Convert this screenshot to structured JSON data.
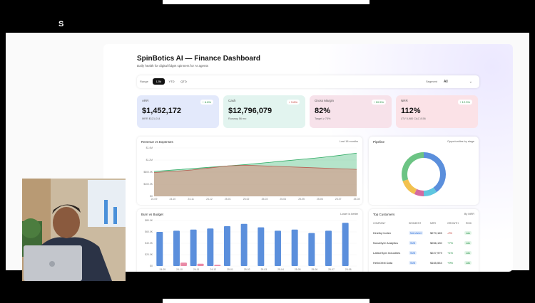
{
  "frame": {
    "corner_mark": "S"
  },
  "dashboard": {
    "title": "SpinBotics AI — Finance Dashboard",
    "subtitle": "Daily health for digital fidget spinners for AI agents",
    "filters": {
      "range_label": "Range",
      "range_options": [
        "12M",
        "YTD",
        "QTD"
      ],
      "range_selected": "12M",
      "segment_label": "Segment",
      "segment_value": "All"
    },
    "kpis": [
      {
        "label": "ARR",
        "value": "$1,452,172",
        "sub": "MRR $121,014",
        "badge": "↑ 6.8%",
        "trend": "up",
        "bg": "#e3e9fb"
      },
      {
        "label": "Cash",
        "value": "$12,796,079",
        "sub": "Runway 56 mo",
        "badge": "↓ 3.6%",
        "trend": "down",
        "bg": "#e2f4ef"
      },
      {
        "label": "Gross Margin",
        "value": "82%",
        "sub": "Target ≥ 75%",
        "badge": "↑ 10.5%",
        "trend": "up",
        "bg": "#f7e2ea"
      },
      {
        "label": "NRR",
        "value": "112%",
        "sub": "LTV 5,980 CAC 8.56",
        "badge": "↑ 12.3%",
        "trend": "up",
        "bg": "#fbe2e7"
      }
    ],
    "revenue_panel": {
      "title": "Revenue vs Expenses",
      "note": "Last 18 months"
    },
    "pipeline_panel": {
      "title": "Pipeline",
      "note": "Opportunities by stage"
    },
    "burn_panel": {
      "title": "Burn vs Budget",
      "note": "Lower is better"
    },
    "customers_panel": {
      "title": "Top Customers",
      "note": "By MRR",
      "columns": [
        "COMPANY",
        "SEGMENT",
        "MRR",
        "GROWTH",
        "RISK"
      ],
      "rows": [
        {
          "company": "Kinetiq Cortex",
          "segment": "Mid-Market",
          "mrr": "$270,165",
          "growth": "-2%",
          "growth_trend": "down",
          "risk": "Low"
        },
        {
          "company": "NovaGyre Analytics",
          "segment": "SMB",
          "mrr": "$266,130",
          "growth": "+7%",
          "growth_trend": "up",
          "risk": "Low"
        },
        {
          "company": "LatticeSpin Industries",
          "segment": "SMB",
          "mrr": "$227,979",
          "growth": "+1%",
          "growth_trend": "up",
          "risk": "Low"
        },
        {
          "company": "HelixOrbit Data",
          "segment": "SMB",
          "mrr": "$165,554",
          "growth": "+9%",
          "growth_trend": "up",
          "risk": "Low"
        }
      ]
    }
  },
  "chart_data": [
    {
      "type": "area",
      "title": "Revenue vs Expenses",
      "y_tick_labels": [
        "$1.4M",
        "$1.2M",
        "$800.0K",
        "$400.0K",
        "$0"
      ],
      "x_tick_labels": [
        "24-09",
        "24-10",
        "24-11",
        "24-12",
        "25-01",
        "25-02",
        "25-03",
        "25-04",
        "25-05",
        "25-06",
        "25-07",
        "25-08"
      ],
      "ylim": [
        0,
        1400000
      ],
      "series": [
        {
          "values": [
            720000,
            760000,
            800000,
            840000,
            880000,
            920000,
            970000,
            1020000,
            1070000,
            1120000,
            1180000,
            1250000
          ],
          "color": "#5cc38a"
        },
        {
          "values": [
            690000,
            720000,
            760000,
            820000,
            880000,
            900000,
            880000,
            860000,
            840000,
            820000,
            800000,
            780000
          ],
          "color": "#d98c7e"
        }
      ]
    },
    {
      "type": "pie",
      "title": "Pipeline",
      "slices": [
        {
          "value": 40,
          "color": "#5b8fdc"
        },
        {
          "value": 10,
          "color": "#5fc6e0"
        },
        {
          "value": 7,
          "color": "#d46aa0"
        },
        {
          "value": 13,
          "color": "#f2c14e"
        },
        {
          "value": 30,
          "color": "#6cc484"
        }
      ]
    },
    {
      "type": "bar",
      "title": "Burn vs Budget",
      "y_tick_labels": [
        "$80.0K",
        "$60.0K",
        "$40.0K",
        "$20.0K",
        "$0"
      ],
      "x_tick_labels": [
        "24-09",
        "24-10",
        "24-11",
        "24-12",
        "25-01",
        "25-02",
        "25-03",
        "25-04",
        "25-05",
        "25-06",
        "25-07",
        "25-08"
      ],
      "ylim": [
        0,
        80000
      ],
      "series": [
        {
          "values": [
            60000,
            62000,
            64000,
            66000,
            70000,
            74000,
            68000,
            62000,
            64000,
            58000,
            62000,
            76000
          ],
          "color": "#5b8fdc"
        },
        {
          "values": [
            0,
            6000,
            4000,
            2000,
            0,
            0,
            0,
            0,
            0,
            0,
            0,
            0
          ],
          "color": "#e98aa6"
        }
      ]
    }
  ]
}
